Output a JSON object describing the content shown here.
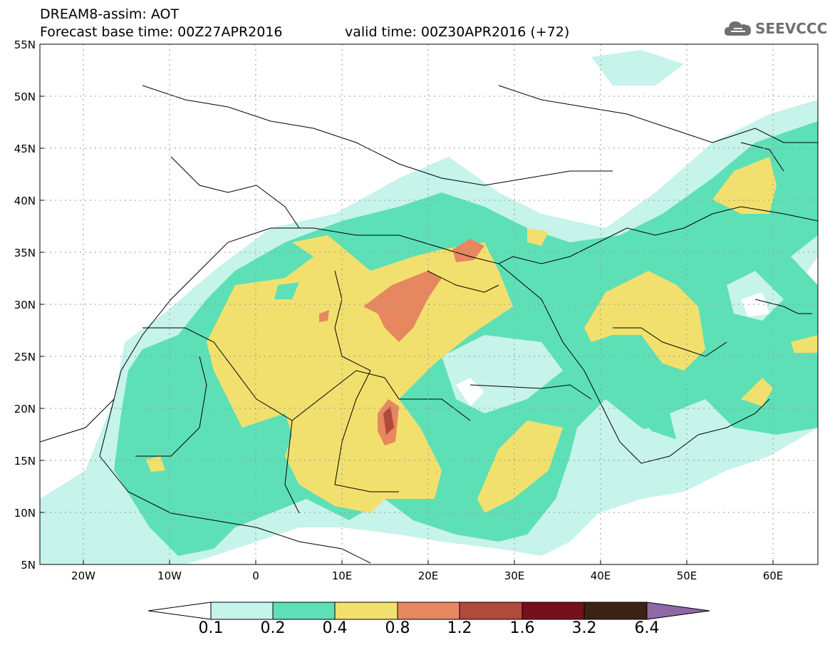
{
  "header": {
    "title": "DREAM8-assim: AOT",
    "base_time": "Forecast base time: 00Z27APR2016",
    "valid_time": "valid time: 00Z30APR2016 (+72)"
  },
  "logo": {
    "text": "SEEVCCC",
    "icon": "cloud-icon"
  },
  "map": {
    "lon_range": [
      -25,
      65
    ],
    "lat_range": [
      5,
      55
    ],
    "y_ticks": [
      "55N",
      "50N",
      "45N",
      "40N",
      "35N",
      "30N",
      "25N",
      "20N",
      "15N",
      "10N",
      "5N"
    ],
    "x_ticks": [
      "20W",
      "10W",
      "0",
      "10E",
      "20E",
      "30E",
      "40E",
      "50E",
      "60E"
    ],
    "grid": true
  },
  "colorbar": {
    "labels": [
      "0.1",
      "0.2",
      "0.4",
      "0.8",
      "1.2",
      "1.6",
      "3.2",
      "6.4"
    ],
    "colors": [
      "#ffffff",
      "#c6f3ea",
      "#5de0b6",
      "#f2e06e",
      "#e68760",
      "#b04a3c",
      "#76101e",
      "#3c2213",
      "#8f68a6"
    ]
  }
}
